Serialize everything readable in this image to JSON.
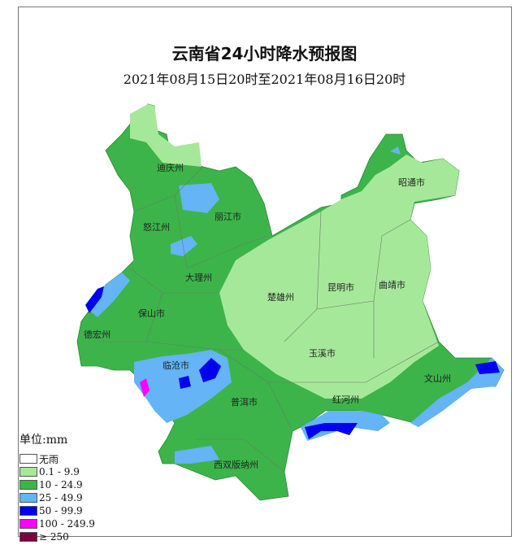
{
  "title": "云南省24小时降水预报图",
  "subtitle": "2021年08月15日20时至2021年08月16日20时",
  "legend": {
    "unit": "单位:mm",
    "items": [
      {
        "label": "无雨",
        "color": "#ffffff"
      },
      {
        "label": "0.1 - 9.9",
        "color": "#a6e89a"
      },
      {
        "label": "10 - 24.9",
        "color": "#3cb44a"
      },
      {
        "label": "25 - 49.9",
        "color": "#64b4f6"
      },
      {
        "label": "50 - 99.9",
        "color": "#0000f0"
      },
      {
        "label": "100 - 249.9",
        "color": "#ff00ff"
      },
      {
        "label": "≥ 250",
        "color": "#7a0040"
      }
    ]
  },
  "regions": [
    "迪庆州",
    "丽江市",
    "怒江州",
    "大理州",
    "保山市",
    "德宏州",
    "临沧市",
    "楚雄州",
    "昆明市",
    "曲靖市",
    "玉溪市",
    "普洱市",
    "红河州",
    "文山州",
    "西双版纳州",
    "昭通市"
  ]
}
